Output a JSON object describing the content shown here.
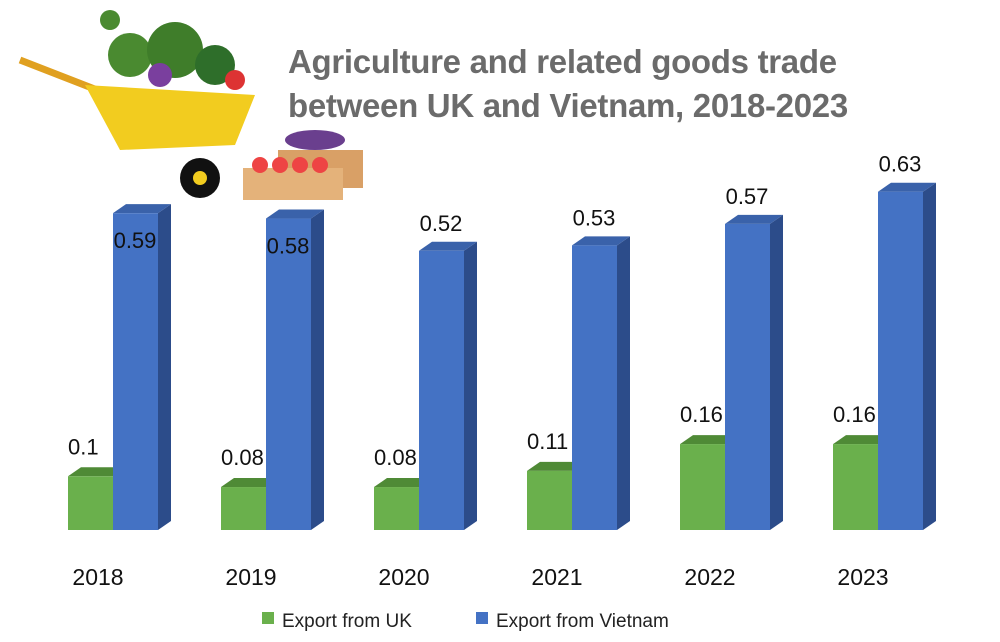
{
  "chart_data": {
    "type": "bar",
    "title": "Agriculture and related goods trade between UK and Vietnam, 2018-2023",
    "title_lines": [
      "Agriculture and related goods trade",
      "between UK and Vietnam, 2018-2023"
    ],
    "categories": [
      "2018",
      "2019",
      "2020",
      "2021",
      "2022",
      "2023"
    ],
    "series": [
      {
        "name": "Export from UK",
        "color": "#6ab04c",
        "values": [
          0.1,
          0.08,
          0.08,
          0.11,
          0.16,
          0.16
        ],
        "labels": [
          "0.1",
          "0.08",
          "0.08",
          "0.11",
          "0.16",
          "0.16"
        ]
      },
      {
        "name": "Export from Vietnam",
        "color": "#4472c4",
        "values": [
          0.59,
          0.58,
          0.52,
          0.53,
          0.57,
          0.63
        ],
        "labels": [
          "0.59",
          "0.58",
          "0.52",
          "0.53",
          "0.57",
          "0.63"
        ]
      }
    ],
    "xlabel": "",
    "ylabel": "",
    "ylim": [
      0,
      0.7
    ],
    "grid": false,
    "legend": "bottom"
  }
}
